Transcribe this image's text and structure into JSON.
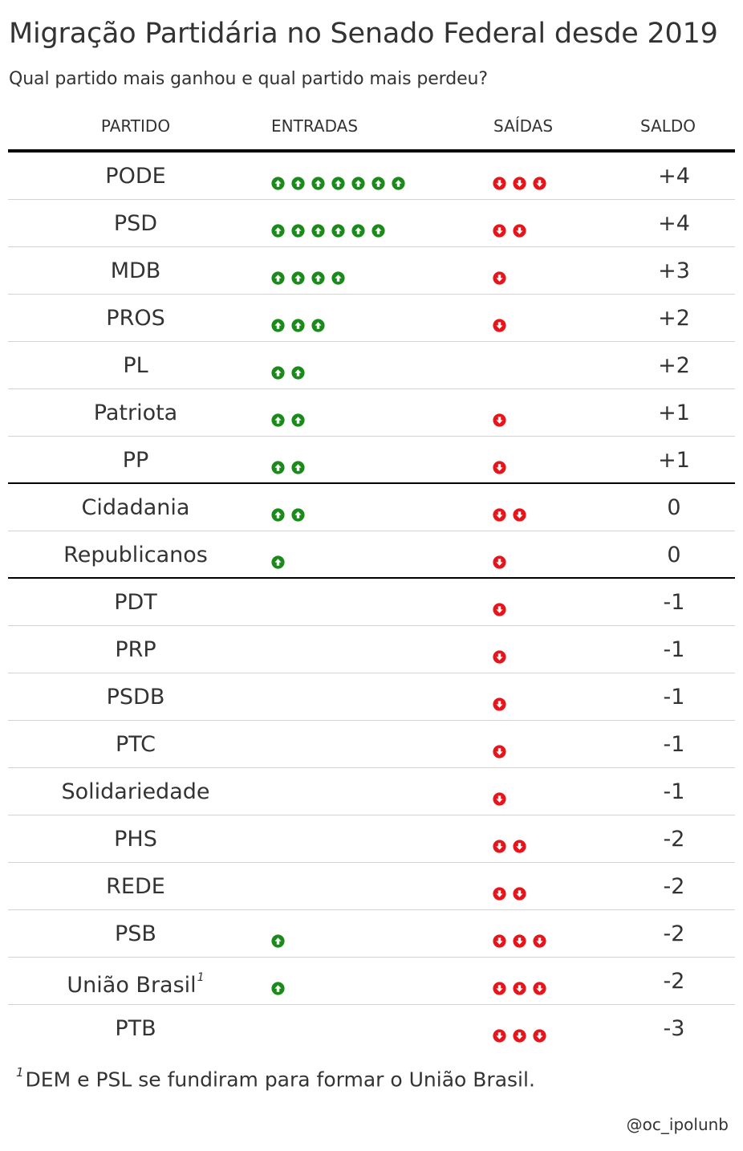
{
  "title": "Migração Partidária no Senado Federal desde 2019",
  "subtitle": "Qual partido mais ganhou e qual partido mais perdeu?",
  "columns": {
    "partido": "PARTIDO",
    "entradas": "ENTRADAS",
    "saidas": "SAÍDAS",
    "saldo": "SALDO"
  },
  "colors": {
    "entrada": "#1a8a1a",
    "saida": "#e8141b",
    "group_rule": "#000000",
    "row_rule": "#d3d3d3",
    "text": "#333333"
  },
  "icons": {
    "entrada": "arrow-up-circle-icon",
    "saida": "arrow-down-circle-icon"
  },
  "rows": [
    {
      "partido": "PODE",
      "entradas": 7,
      "saidas": 3,
      "saldo": "+4"
    },
    {
      "partido": "PSD",
      "entradas": 6,
      "saidas": 2,
      "saldo": "+4"
    },
    {
      "partido": "MDB",
      "entradas": 4,
      "saidas": 1,
      "saldo": "+3"
    },
    {
      "partido": "PROS",
      "entradas": 3,
      "saidas": 1,
      "saldo": "+2"
    },
    {
      "partido": "PL",
      "entradas": 2,
      "saidas": 0,
      "saldo": "+2"
    },
    {
      "partido": "Patriota",
      "entradas": 2,
      "saidas": 1,
      "saldo": "+1"
    },
    {
      "partido": "PP",
      "entradas": 2,
      "saidas": 1,
      "saldo": "+1",
      "group_end": true
    },
    {
      "partido": "Cidadania",
      "entradas": 2,
      "saidas": 2,
      "saldo": "0"
    },
    {
      "partido": "Republicanos",
      "entradas": 1,
      "saidas": 1,
      "saldo": "0",
      "group_end": true
    },
    {
      "partido": "PDT",
      "entradas": 0,
      "saidas": 1,
      "saldo": "-1"
    },
    {
      "partido": "PRP",
      "entradas": 0,
      "saidas": 1,
      "saldo": "-1"
    },
    {
      "partido": "PSDB",
      "entradas": 0,
      "saidas": 1,
      "saldo": "-1"
    },
    {
      "partido": "PTC",
      "entradas": 0,
      "saidas": 1,
      "saldo": "-1"
    },
    {
      "partido": "Solidariedade",
      "entradas": 0,
      "saidas": 1,
      "saldo": "-1"
    },
    {
      "partido": "PHS",
      "entradas": 0,
      "saidas": 2,
      "saldo": "-2"
    },
    {
      "partido": "REDE",
      "entradas": 0,
      "saidas": 2,
      "saldo": "-2"
    },
    {
      "partido": "PSB",
      "entradas": 1,
      "saidas": 3,
      "saldo": "-2"
    },
    {
      "partido": "União Brasil",
      "footnote_mark": "1",
      "entradas": 1,
      "saidas": 3,
      "saldo": "-2"
    },
    {
      "partido": "PTB",
      "entradas": 0,
      "saidas": 3,
      "saldo": "-3"
    }
  ],
  "footnote": {
    "mark": "1",
    "text": "DEM e PSL se fundiram para formar o União Brasil."
  },
  "credit": "@oc_ipolunb"
}
